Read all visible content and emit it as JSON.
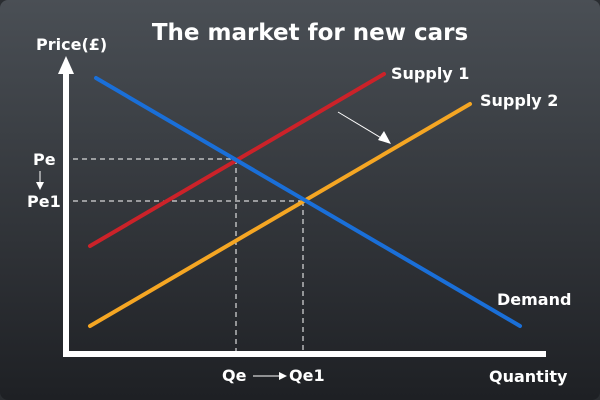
{
  "title": "The market for new cars",
  "axes": {
    "y_label": "Price(£)",
    "x_label": "Quantity"
  },
  "curves": {
    "supply1": {
      "label": "Supply 1",
      "color": "#cc2229"
    },
    "supply2": {
      "label": "Supply 2",
      "color": "#f5a623"
    },
    "demand": {
      "label": "Demand",
      "color": "#1a6fd8"
    }
  },
  "price_ticks": {
    "pe": "Pe",
    "pe1": "Pe1"
  },
  "quantity_ticks": {
    "qe": "Qe",
    "qe1": "Qe1"
  },
  "colors": {
    "background_top": "#4a4f55",
    "background_bottom": "#1e2024",
    "axis": "#ffffff",
    "guide": "#ffffff",
    "shift_arrow": "#ffffff"
  },
  "icons": {
    "shift_arrow": "arrow-icon",
    "price_change_arrow": "down-arrow-icon",
    "quantity_change_arrow": "right-arrow-icon"
  }
}
